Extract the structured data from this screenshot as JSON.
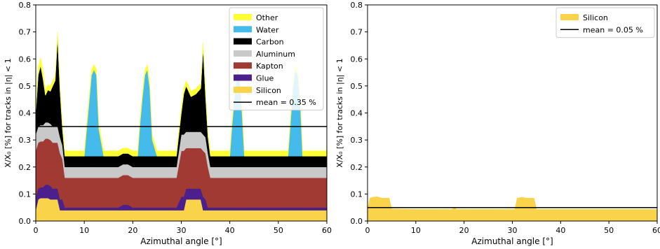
{
  "chart_data": [
    {
      "type": "area",
      "stacked": true,
      "xlabel": "Azimuthal angle [°]",
      "ylabel": "X/X₀ [%] for tracks in |η| < 1",
      "xlim": [
        0,
        60
      ],
      "ylim": [
        0,
        0.8
      ],
      "xticks": [
        "0",
        "10",
        "20",
        "30",
        "40",
        "50",
        "60"
      ],
      "yticks": [
        "0.0",
        "0.1",
        "0.2",
        "0.3",
        "0.4",
        "0.5",
        "0.6",
        "0.7",
        "0.8"
      ],
      "grid": false,
      "legend_position": "top-right",
      "x": [
        0,
        0.5,
        1,
        1.5,
        2,
        2.5,
        3,
        3.5,
        4,
        4.5,
        5,
        5.5,
        6,
        6.5,
        7,
        8,
        9,
        10,
        10.5,
        11,
        11.5,
        12,
        12.5,
        13,
        14,
        15,
        16,
        17,
        18,
        19,
        20,
        21,
        21.5,
        22,
        22.5,
        23,
        23.5,
        24,
        25,
        26,
        27,
        28,
        29,
        30,
        30.5,
        31,
        32,
        33,
        34,
        34.5,
        35,
        35.5,
        36,
        37,
        38,
        39,
        40,
        40.5,
        41,
        41.5,
        42,
        42.5,
        43,
        44,
        45,
        46,
        47,
        48,
        49,
        50,
        51,
        52,
        52.5,
        53,
        53.5,
        54,
        54.5,
        55,
        56,
        57,
        58,
        59,
        60
      ],
      "series": [
        {
          "name": "Silicon",
          "color": "#f9d44a",
          "values": [
            0.04,
            0.08,
            0.085,
            0.085,
            0.085,
            0.085,
            0.08,
            0.08,
            0.08,
            0.08,
            0.04,
            0.04,
            0.04,
            0.04,
            0.04,
            0.04,
            0.04,
            0.04,
            0.04,
            0.04,
            0.04,
            0.04,
            0.04,
            0.04,
            0.04,
            0.04,
            0.04,
            0.04,
            0.04,
            0.04,
            0.04,
            0.04,
            0.04,
            0.04,
            0.04,
            0.04,
            0.04,
            0.04,
            0.04,
            0.04,
            0.04,
            0.04,
            0.04,
            0.04,
            0.04,
            0.08,
            0.08,
            0.08,
            0.08,
            0.04,
            0.04,
            0.04,
            0.04,
            0.04,
            0.04,
            0.04,
            0.04,
            0.04,
            0.04,
            0.04,
            0.04,
            0.04,
            0.04,
            0.04,
            0.04,
            0.04,
            0.04,
            0.04,
            0.04,
            0.04,
            0.04,
            0.04,
            0.04,
            0.04,
            0.04,
            0.04,
            0.04,
            0.04,
            0.04,
            0.04,
            0.04,
            0.04,
            0.04
          ]
        },
        {
          "name": "Glue",
          "color": "#4b1f8c",
          "values": [
            0.05,
            0.04,
            0.04,
            0.04,
            0.05,
            0.05,
            0.05,
            0.04,
            0.04,
            0.04,
            0.04,
            0.04,
            0.01,
            0.01,
            0.01,
            0.01,
            0.01,
            0.01,
            0.01,
            0.01,
            0.01,
            0.01,
            0.01,
            0.01,
            0.01,
            0.01,
            0.01,
            0.01,
            0.02,
            0.02,
            0.01,
            0.01,
            0.01,
            0.01,
            0.01,
            0.01,
            0.01,
            0.01,
            0.01,
            0.01,
            0.01,
            0.01,
            0.01,
            0.05,
            0.05,
            0.04,
            0.04,
            0.04,
            0.04,
            0.05,
            0.04,
            0.01,
            0.01,
            0.01,
            0.01,
            0.01,
            0.01,
            0.01,
            0.01,
            0.01,
            0.01,
            0.01,
            0.01,
            0.01,
            0.01,
            0.01,
            0.01,
            0.01,
            0.01,
            0.01,
            0.01,
            0.01,
            0.01,
            0.01,
            0.01,
            0.01,
            0.01,
            0.01,
            0.01,
            0.01,
            0.01,
            0.01,
            0.01
          ]
        },
        {
          "name": "Kapton",
          "color": "#a13a33",
          "values": [
            0.17,
            0.17,
            0.17,
            0.17,
            0.17,
            0.17,
            0.17,
            0.17,
            0.17,
            0.17,
            0.17,
            0.15,
            0.11,
            0.11,
            0.11,
            0.11,
            0.11,
            0.11,
            0.11,
            0.11,
            0.11,
            0.11,
            0.11,
            0.11,
            0.11,
            0.11,
            0.11,
            0.11,
            0.11,
            0.11,
            0.11,
            0.11,
            0.11,
            0.11,
            0.11,
            0.11,
            0.11,
            0.11,
            0.11,
            0.11,
            0.11,
            0.11,
            0.11,
            0.17,
            0.17,
            0.15,
            0.15,
            0.15,
            0.15,
            0.17,
            0.17,
            0.15,
            0.11,
            0.11,
            0.11,
            0.11,
            0.11,
            0.11,
            0.11,
            0.11,
            0.11,
            0.11,
            0.11,
            0.11,
            0.11,
            0.11,
            0.11,
            0.11,
            0.11,
            0.11,
            0.11,
            0.11,
            0.11,
            0.11,
            0.11,
            0.11,
            0.11,
            0.11,
            0.11,
            0.11,
            0.11,
            0.11,
            0.11
          ]
        },
        {
          "name": "Aluminum",
          "color": "#c9c9c9",
          "values": [
            0.06,
            0.06,
            0.06,
            0.06,
            0.06,
            0.06,
            0.06,
            0.06,
            0.06,
            0.06,
            0.06,
            0.05,
            0.04,
            0.04,
            0.04,
            0.04,
            0.04,
            0.04,
            0.04,
            0.04,
            0.04,
            0.04,
            0.04,
            0.04,
            0.04,
            0.04,
            0.04,
            0.04,
            0.04,
            0.04,
            0.04,
            0.04,
            0.04,
            0.04,
            0.04,
            0.04,
            0.04,
            0.04,
            0.04,
            0.04,
            0.04,
            0.04,
            0.04,
            0.06,
            0.06,
            0.06,
            0.06,
            0.06,
            0.06,
            0.06,
            0.06,
            0.05,
            0.04,
            0.04,
            0.04,
            0.04,
            0.04,
            0.04,
            0.04,
            0.04,
            0.04,
            0.04,
            0.04,
            0.04,
            0.04,
            0.04,
            0.04,
            0.04,
            0.04,
            0.04,
            0.04,
            0.04,
            0.04,
            0.04,
            0.04,
            0.04,
            0.04,
            0.04,
            0.04,
            0.04,
            0.04,
            0.04,
            0.04
          ]
        },
        {
          "name": "Carbon",
          "color": "#000000",
          "values": [
            0.08,
            0.19,
            0.22,
            0.17,
            0.1,
            0.12,
            0.12,
            0.15,
            0.17,
            0.33,
            0.17,
            0.06,
            0.04,
            0.04,
            0.04,
            0.04,
            0.04,
            0.04,
            0.04,
            0.04,
            0.04,
            0.04,
            0.04,
            0.04,
            0.04,
            0.04,
            0.04,
            0.04,
            0.04,
            0.04,
            0.04,
            0.04,
            0.04,
            0.04,
            0.04,
            0.04,
            0.04,
            0.04,
            0.04,
            0.04,
            0.04,
            0.04,
            0.04,
            0.08,
            0.15,
            0.17,
            0.13,
            0.14,
            0.16,
            0.32,
            0.15,
            0.06,
            0.04,
            0.04,
            0.04,
            0.04,
            0.04,
            0.04,
            0.04,
            0.04,
            0.04,
            0.04,
            0.04,
            0.04,
            0.04,
            0.04,
            0.04,
            0.04,
            0.04,
            0.04,
            0.04,
            0.04,
            0.04,
            0.04,
            0.04,
            0.04,
            0.04,
            0.04,
            0.04,
            0.04,
            0.04,
            0.04,
            0.04
          ]
        },
        {
          "name": "Water",
          "color": "#45bbec",
          "values": [
            0,
            0,
            0,
            0,
            0,
            0,
            0,
            0,
            0,
            0,
            0,
            0,
            0,
            0,
            0,
            0,
            0,
            0,
            0.1,
            0.2,
            0.3,
            0.32,
            0.3,
            0.1,
            0,
            0,
            0,
            0,
            0,
            0,
            0,
            0,
            0.12,
            0.22,
            0.3,
            0.32,
            0.25,
            0.06,
            0,
            0,
            0,
            0,
            0,
            0,
            0,
            0,
            0,
            0,
            0,
            0,
            0,
            0,
            0,
            0,
            0,
            0,
            0,
            0.12,
            0.22,
            0.32,
            0.3,
            0.16,
            0,
            0,
            0,
            0,
            0,
            0,
            0,
            0,
            0,
            0,
            0.12,
            0.25,
            0.32,
            0.3,
            0.2,
            0,
            0,
            0,
            0,
            0,
            0
          ]
        },
        {
          "name": "Other",
          "color": "#ffff33",
          "values": [
            0.01,
            0.03,
            0.03,
            0.03,
            0.02,
            0.02,
            0.02,
            0.02,
            0.02,
            0.02,
            0.02,
            0.02,
            0.02,
            0.02,
            0.02,
            0.02,
            0.02,
            0.02,
            0.02,
            0.02,
            0.02,
            0.02,
            0.02,
            0.02,
            0.02,
            0.02,
            0.02,
            0.02,
            0.02,
            0.02,
            0.02,
            0.02,
            0.02,
            0.02,
            0.02,
            0.02,
            0.02,
            0.02,
            0.02,
            0.02,
            0.02,
            0.02,
            0.02,
            0.02,
            0.02,
            0.02,
            0.02,
            0.02,
            0.02,
            0.02,
            0.02,
            0.02,
            0.02,
            0.02,
            0.02,
            0.02,
            0.02,
            0.02,
            0.02,
            0.02,
            0.02,
            0.02,
            0.02,
            0.02,
            0.02,
            0.02,
            0.02,
            0.02,
            0.02,
            0.02,
            0.02,
            0.02,
            0.02,
            0.02,
            0.02,
            0.02,
            0.02,
            0.02,
            0.02,
            0.02,
            0.02,
            0.02,
            0.02
          ]
        }
      ],
      "legend_order": [
        "Other",
        "Water",
        "Carbon",
        "Aluminum",
        "Kapton",
        "Glue",
        "Silicon"
      ],
      "mean_line": {
        "value": 0.35,
        "label": "mean = 0.35 %",
        "color": "#000000"
      }
    },
    {
      "type": "area",
      "stacked": true,
      "xlabel": "Azimuthal angle [°]",
      "ylabel": "X/X₀ [%] for tracks in |η| < 1",
      "xlim": [
        0,
        60
      ],
      "ylim": [
        0,
        0.8
      ],
      "xticks": [
        "0",
        "10",
        "20",
        "30",
        "40",
        "50",
        "60"
      ],
      "yticks": [
        "0.0",
        "0.1",
        "0.2",
        "0.3",
        "0.4",
        "0.5",
        "0.6",
        "0.7",
        "0.8"
      ],
      "grid": false,
      "legend_position": "top-right",
      "x": [
        0,
        0.5,
        1,
        2,
        3,
        4,
        4.5,
        5,
        10,
        15,
        17.5,
        18,
        18.5,
        19,
        20,
        25,
        28,
        30,
        30.5,
        31,
        32,
        33,
        34,
        34.5,
        35,
        40,
        45,
        50,
        55,
        60
      ],
      "series": [
        {
          "name": "Silicon",
          "color": "#f9d44a",
          "values": [
            0.045,
            0.085,
            0.088,
            0.09,
            0.085,
            0.085,
            0.085,
            0.045,
            0.043,
            0.043,
            0.043,
            0.05,
            0.043,
            0.043,
            0.043,
            0.043,
            0.043,
            0.043,
            0.043,
            0.085,
            0.088,
            0.085,
            0.085,
            0.085,
            0.043,
            0.043,
            0.043,
            0.043,
            0.043,
            0.043
          ]
        }
      ],
      "legend_order": [
        "Silicon"
      ],
      "mean_line": {
        "value": 0.05,
        "label": "mean = 0.05 %",
        "color": "#000000"
      }
    }
  ]
}
